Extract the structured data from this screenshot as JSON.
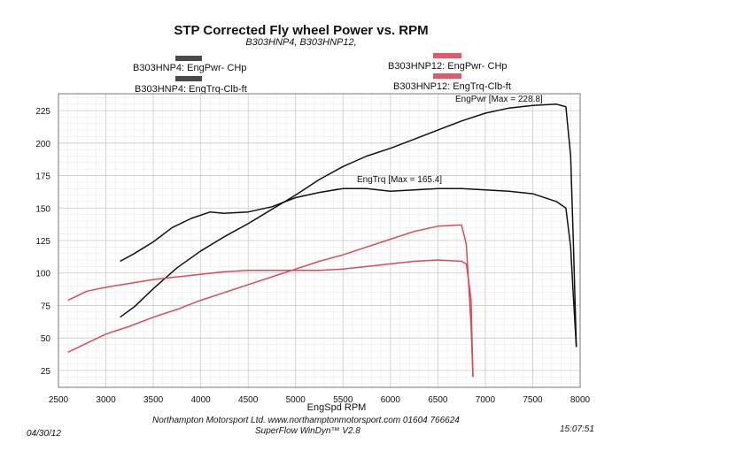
{
  "chart_data": {
    "type": "line",
    "title": "STP Corrected Fly wheel Power vs. RPM",
    "subtitle": "B303HNP4, B303HNP12,",
    "xlabel": "EngSpd  RPM",
    "ylabel": "",
    "xlim": [
      2500,
      8000
    ],
    "ylim": [
      12,
      238
    ],
    "x_ticks": [
      "2500",
      "3000",
      "3500",
      "4000",
      "4500",
      "5000",
      "5500",
      "6000",
      "6500",
      "7000",
      "7500",
      "8000"
    ],
    "y_ticks": [
      "25",
      "50",
      "75",
      "100",
      "125",
      "150",
      "175",
      "200",
      "225"
    ],
    "grid": true,
    "legend": [
      {
        "label": "B303HNP4: EngPwr- CHp",
        "color": "#4a4a4a"
      },
      {
        "label": "B303HNP4: EngTrq-Clb-ft",
        "color": "#4a4a4a"
      },
      {
        "label": "B303HNP12: EngPwr- CHp",
        "color": "#e05a6a"
      },
      {
        "label": "B303HNP12: EngTrq-Clb-ft",
        "color": "#e05a6a"
      }
    ],
    "annotations": [
      "EngPwr [Max = 228.8]",
      "EngTrq [Max = 165.4]"
    ],
    "series": [
      {
        "name": "B303HNP4: EngPwr- CHp",
        "color": "#111111",
        "x": [
          3150,
          3300,
          3500,
          3750,
          4000,
          4250,
          4500,
          4750,
          5000,
          5250,
          5500,
          5750,
          6000,
          6250,
          6500,
          6750,
          7000,
          7250,
          7500,
          7750,
          7850,
          7900,
          7930,
          7960
        ],
        "y": [
          66,
          74,
          88,
          104,
          117,
          128,
          138,
          149,
          160,
          172,
          182,
          190,
          196,
          203,
          210,
          217,
          223,
          227,
          229,
          230,
          228,
          190,
          120,
          43
        ]
      },
      {
        "name": "B303HNP4: EngTrq-Clb-ft",
        "color": "#111111",
        "x": [
          3150,
          3300,
          3500,
          3700,
          3900,
          4100,
          4250,
          4500,
          4750,
          5000,
          5250,
          5500,
          5750,
          6000,
          6250,
          6500,
          6750,
          7000,
          7250,
          7500,
          7750,
          7850,
          7900,
          7930,
          7960
        ],
        "y": [
          109,
          115,
          124,
          135,
          142,
          147,
          146,
          147,
          151,
          158,
          162,
          165,
          165,
          163,
          164,
          165,
          165,
          164,
          163,
          161,
          155,
          150,
          120,
          80,
          43
        ]
      },
      {
        "name": "B303HNP12: EngPwr- CHp",
        "color": "#d84b5a",
        "x": [
          2600,
          2800,
          3000,
          3250,
          3500,
          3750,
          4000,
          4250,
          4500,
          4750,
          5000,
          5250,
          5500,
          5750,
          6000,
          6250,
          6500,
          6750,
          6800,
          6850,
          6870
        ],
        "y": [
          39,
          46,
          53,
          59,
          66,
          72,
          79,
          85,
          91,
          97,
          103,
          109,
          114,
          120,
          126,
          132,
          136,
          137,
          122,
          60,
          20
        ]
      },
      {
        "name": "B303HNP12: EngTrq-Clb-ft",
        "color": "#d84b5a",
        "x": [
          2600,
          2800,
          3000,
          3250,
          3500,
          3750,
          4000,
          4250,
          4500,
          4750,
          5000,
          5250,
          5500,
          5750,
          6000,
          6250,
          6500,
          6750,
          6800,
          6850,
          6870
        ],
        "y": [
          79,
          86,
          89,
          92,
          95,
          97,
          99,
          101,
          102,
          102,
          102,
          102,
          103,
          105,
          107,
          109,
          110,
          109,
          107,
          80,
          20
        ]
      }
    ]
  },
  "footer": {
    "company": "Northampton Motorsport Ltd. www.northamptonmotorsport.com 01604 766624",
    "software": "SuperFlow WinDyn™ V2.8",
    "date": "04/30/12",
    "time": "15:07:51"
  }
}
